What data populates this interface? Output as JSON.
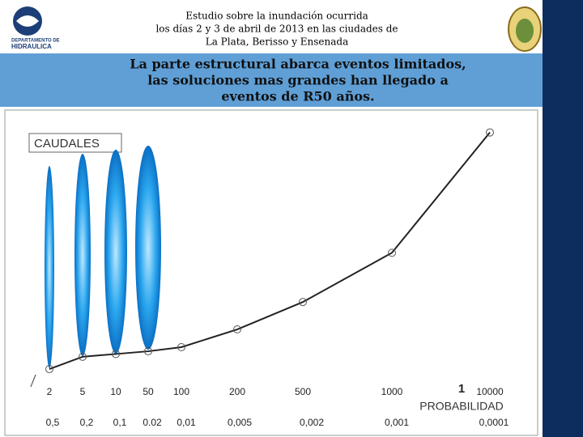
{
  "header": {
    "logo_lines": [
      "DEPARTAMENTO DE",
      "HIDRAULICA"
    ],
    "title_lines": [
      "Estudio sobre la inundación ocurrida",
      "los días 2 y 3 de abril de 2013 en las ciudades de",
      "La Plata, Berisso y Ensenada"
    ]
  },
  "banner": {
    "lines": [
      "La parte estructural abarca eventos limitados,",
      "las soluciones mas grandes han llegado a",
      "eventos de R50 años."
    ]
  },
  "chart_data": {
    "type": "line",
    "title": "CAUDALES",
    "xlabel": "PROBABILIDAD",
    "annotation": "1",
    "categories": [
      "2",
      "5",
      "10",
      "50",
      "100",
      "200",
      "500",
      "1000",
      "10000"
    ],
    "probabilities": [
      "0,5",
      "0,2",
      "0,1",
      "0.02",
      "0,01",
      "0,005",
      "0,002",
      "0,001",
      "0,0001"
    ],
    "values": [
      6.5,
      11,
      12,
      13,
      14.5,
      21,
      31,
      49,
      93
    ],
    "color": "#222222",
    "ylim": [
      0,
      100
    ]
  }
}
